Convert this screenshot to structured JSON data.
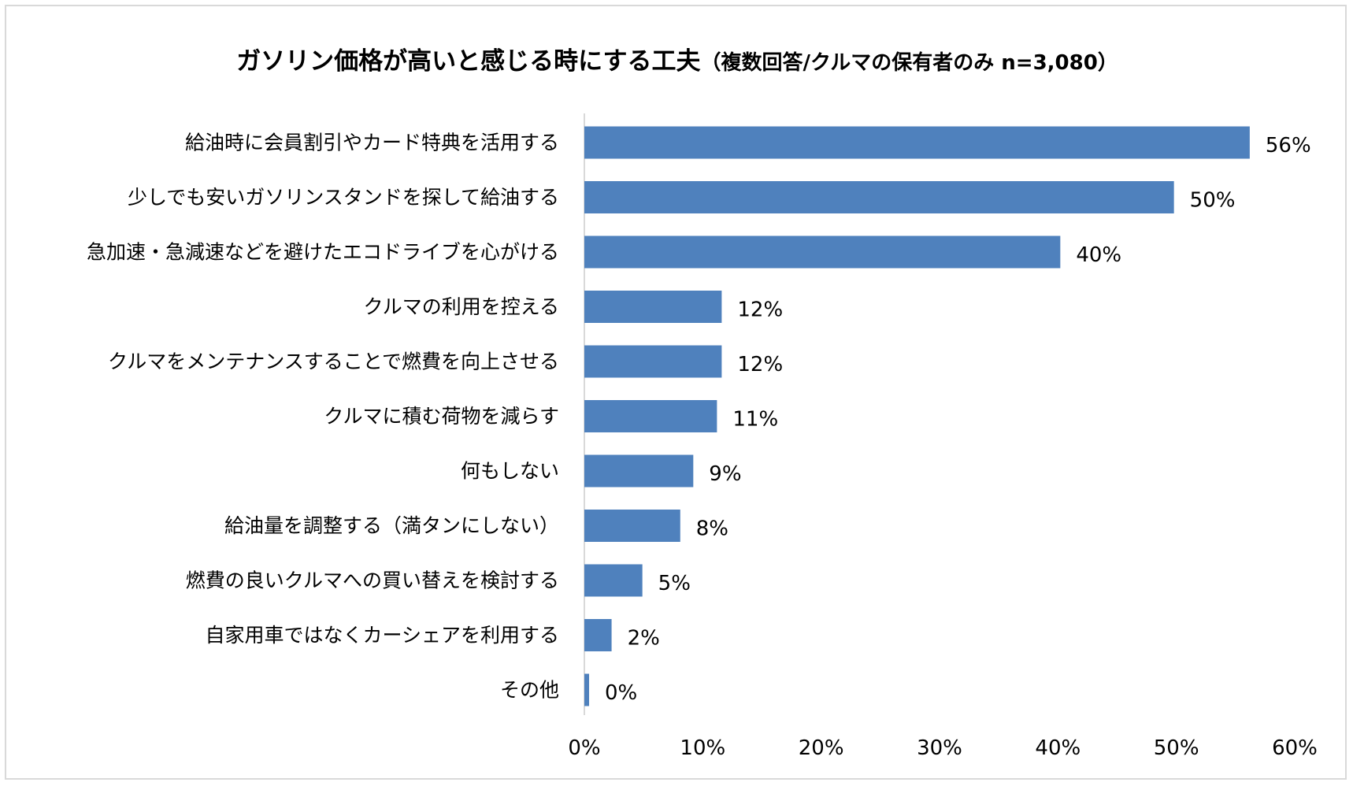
{
  "chart_data": {
    "type": "bar",
    "orientation": "horizontal",
    "title": "ガソリン価格が高いと感じる時にする工夫",
    "subtitle": "（複数回答/クルマの保有者のみ n=3,080）",
    "categories": [
      "給油時に会員割引やカード特典を活用する",
      "少しでも安いガソリンスタンドを探して給油する",
      "急加速・急減速などを避けたエコドライブを心がける",
      "クルマの利用を控える",
      "クルマをメンテナンスすることで燃費を向上させる",
      "クルマに積む荷物を減らす",
      "何もしない",
      "給油量を調整する（満タンにしない）",
      "燃費の良いクルマへの買い替えを検討する",
      "自家用車ではなくカーシェアを利用する",
      "その他"
    ],
    "values": [
      56.2,
      49.8,
      40.2,
      11.6,
      11.6,
      11.2,
      9.2,
      8.1,
      4.9,
      2.3,
      0.4
    ],
    "value_labels": [
      "56%",
      "50%",
      "40%",
      "12%",
      "12%",
      "11%",
      "9%",
      "8%",
      "5%",
      "2%",
      "0%"
    ],
    "xlim": [
      0,
      60
    ],
    "x_ticks": [
      "0%",
      "10%",
      "20%",
      "30%",
      "40%",
      "50%",
      "60%"
    ],
    "bar_color": "#4f81bd",
    "grid": false,
    "legend": "none"
  }
}
